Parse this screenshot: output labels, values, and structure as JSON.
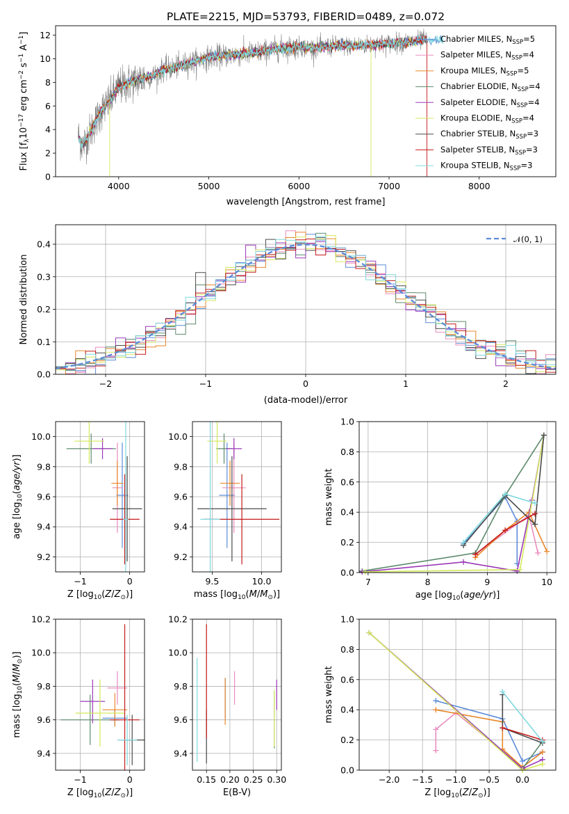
{
  "chart_data": [
    {
      "id": "spectrum",
      "type": "line",
      "title": "PLATE=2215, MJD=53793, FIBERID=0489, z=0.072",
      "xlabel": "wavelength [Angstrom, rest frame]",
      "ylabel": "Flux [f_λ 10^-17 erg cm^-2 s^-1 A^-1]",
      "xlim": [
        3300,
        8850
      ],
      "ylim": [
        0,
        12.8
      ],
      "xticks": [
        4000,
        5000,
        6000,
        7000,
        8000
      ],
      "yticks": [
        0,
        2,
        4,
        6,
        8,
        10,
        12
      ],
      "data_color": "#808080",
      "data_series": {
        "x": [
          3550,
          3600,
          3700,
          3800,
          3900,
          4000,
          4100,
          4200,
          4300,
          4400,
          4500,
          4600,
          4800,
          5000,
          5200,
          5400,
          5600,
          5800,
          6000,
          6200,
          6400,
          6600,
          6800,
          7000,
          7200,
          7400
        ],
        "y": [
          3.5,
          2.6,
          4.0,
          5.5,
          6.4,
          7.6,
          7.9,
          8.2,
          8.4,
          8.6,
          9.1,
          9.2,
          9.7,
          10.1,
          10.3,
          10.4,
          10.6,
          10.9,
          11.0,
          10.9,
          11.1,
          11.1,
          11.2,
          11.3,
          11.4,
          11.6
        ]
      },
      "series": [
        {
          "name": "Chabrier MILES, N_SSP=5",
          "color": "#5b8bd9"
        },
        {
          "name": "Salpeter MILES, N_SSP=4",
          "color": "#e98bbd"
        },
        {
          "name": "Kroupa MILES, N_SSP=5",
          "color": "#e8862a"
        },
        {
          "name": "Chabrier ELODIE, N_SSP=4",
          "color": "#5c8a6c"
        },
        {
          "name": "Salpeter ELODIE, N_SSP=4",
          "color": "#9b38b8"
        },
        {
          "name": "Kroupa ELODIE, N_SSP=4",
          "color": "#d5e85c"
        },
        {
          "name": "Chabrier STELIB, N_SSP=3",
          "color": "#4a4a4a"
        },
        {
          "name": "Salpeter STELIB, N_SSP=3",
          "color": "#c41a1a"
        },
        {
          "name": "Kroupa STELIB, N_SSP=3",
          "color": "#7fd8de"
        }
      ],
      "legend": "upper right"
    },
    {
      "id": "residuals",
      "type": "line",
      "xlabel": "(data-model)/error",
      "ylabel": "Normed distribution",
      "xlim": [
        -2.5,
        2.5
      ],
      "ylim": [
        0,
        0.46
      ],
      "xticks": [
        -2,
        -1,
        0,
        1,
        2
      ],
      "yticks": [
        0.0,
        0.1,
        0.2,
        0.3,
        0.4
      ],
      "bin_width": 0.1,
      "grid": true,
      "series": [
        {
          "name": "N(0,1)",
          "style": "dashed",
          "color": "#5b8bd9"
        }
      ],
      "legend_label": "𝒩(0, 1)",
      "legend": "upper right"
    },
    {
      "id": "age_vs_Z",
      "type": "scatter",
      "xlabel": "Z [log10(Z/Z⊙)]",
      "ylabel": "age  [log10(age/yr)]",
      "xlim": [
        -1.5,
        0.3
      ],
      "ylim": [
        9.1,
        10.1
      ],
      "xticks": [
        -1,
        0
      ],
      "yticks": [
        9.2,
        9.4,
        9.6,
        9.8,
        10.0
      ],
      "points": [
        {
          "s": 0,
          "x": -0.15,
          "y": 9.61,
          "xe": 0.12,
          "ye": 0.35
        },
        {
          "s": 1,
          "x": -0.25,
          "y": 9.66,
          "xe": 0.1,
          "ye": 0.3
        },
        {
          "s": 2,
          "x": -0.25,
          "y": 9.69,
          "xe": 0.12,
          "ye": 0.15
        },
        {
          "s": 3,
          "x": -0.78,
          "y": 9.92,
          "xe": 0.5,
          "ye": 0.1
        },
        {
          "s": 4,
          "x": -0.55,
          "y": 9.92,
          "xe": 0.2,
          "ye": 0.07
        },
        {
          "s": 5,
          "x": -0.82,
          "y": 9.97,
          "xe": 0.3,
          "ye": 0.15
        },
        {
          "s": 6,
          "x": -0.05,
          "y": 9.52,
          "xe": 0.3,
          "ye": 0.35
        },
        {
          "s": 7,
          "x": -0.1,
          "y": 9.45,
          "xe": 0.3,
          "ye": 0.3
        },
        {
          "s": 8,
          "x": -0.08,
          "y": 9.45,
          "xe": 0.05,
          "ye": 0.65
        }
      ]
    },
    {
      "id": "age_vs_mass",
      "type": "scatter",
      "xlabel": "mass [log10(M/M⊙)]",
      "ylabel": "",
      "xlim": [
        9.3,
        10.2
      ],
      "ylim": [
        9.1,
        10.1
      ],
      "xticks": [
        9.5,
        10.0
      ],
      "yticks": [
        9.2,
        9.4,
        9.6,
        9.8,
        10.0
      ],
      "points": [
        {
          "s": 0,
          "x": 9.65,
          "y": 9.61,
          "xe": 0.08,
          "ye": 0.35
        },
        {
          "s": 1,
          "x": 9.72,
          "y": 9.66,
          "xe": 0.12,
          "ye": 0.3
        },
        {
          "s": 2,
          "x": 9.68,
          "y": 9.69,
          "xe": 0.1,
          "ye": 0.15
        },
        {
          "s": 3,
          "x": 9.62,
          "y": 9.92,
          "xe": 0.08,
          "ye": 0.1
        },
        {
          "s": 4,
          "x": 9.72,
          "y": 9.92,
          "xe": 0.08,
          "ye": 0.07
        },
        {
          "s": 5,
          "x": 9.55,
          "y": 9.97,
          "xe": 0.1,
          "ye": 0.15
        },
        {
          "s": 6,
          "x": 9.7,
          "y": 9.52,
          "xe": 0.35,
          "ye": 0.35
        },
        {
          "s": 7,
          "x": 9.8,
          "y": 9.45,
          "xe": 0.38,
          "ye": 0.3
        },
        {
          "s": 8,
          "x": 9.48,
          "y": 9.45,
          "xe": 0.1,
          "ye": 0.65
        }
      ]
    },
    {
      "id": "weight_vs_age",
      "type": "line",
      "xlabel": "age  [log10(age/yr)]",
      "ylabel": "mass weight",
      "xlim": [
        6.85,
        10.15
      ],
      "ylim": [
        0,
        1.0
      ],
      "xticks": [
        7,
        8,
        9,
        10
      ],
      "yticks": [
        0.0,
        0.2,
        0.4,
        0.6,
        0.8,
        1.0
      ],
      "grid": true,
      "series": [
        {
          "s": 0,
          "x": [
            8.6,
            9.3,
            9.5,
            9.5
          ],
          "y": [
            0.19,
            0.5,
            0.34,
            0.06
          ]
        },
        {
          "s": 1,
          "x": [
            8.8,
            9.7,
            9.85
          ],
          "y": [
            0.12,
            0.38,
            0.13
          ]
        },
        {
          "s": 2,
          "x": [
            8.8,
            9.3,
            9.7,
            10.0
          ],
          "y": [
            0.1,
            0.28,
            0.4,
            0.14
          ]
        },
        {
          "s": 3,
          "x": [
            6.9,
            8.8,
            9.3,
            9.95
          ],
          "y": [
            0.01,
            0.13,
            0.51,
            0.91
          ]
        },
        {
          "s": 4,
          "x": [
            6.9,
            8.6,
            9.5,
            9.75,
            9.95
          ],
          "y": [
            0.005,
            0.07,
            0.01,
            0.48,
            0.91
          ]
        },
        {
          "s": 5,
          "x": [
            6.95,
            9.55,
            9.95
          ],
          "y": [
            0.005,
            0.02,
            0.91
          ]
        },
        {
          "s": 6,
          "x": [
            8.6,
            9.3,
            9.8,
            9.95
          ],
          "y": [
            0.18,
            0.51,
            0.32,
            0.91
          ]
        },
        {
          "s": 7,
          "x": [
            8.8,
            9.3,
            9.8
          ],
          "y": [
            0.12,
            0.28,
            0.39
          ]
        },
        {
          "s": 8,
          "x": [
            8.6,
            9.3,
            9.8
          ],
          "y": [
            0.2,
            0.52,
            0.46
          ]
        }
      ]
    },
    {
      "id": "mass_vs_Z",
      "type": "scatter",
      "xlabel": "Z [log10(Z/Z⊙)]",
      "ylabel": "mass [log10(M/M⊙)]",
      "xlim": [
        -1.5,
        0.3
      ],
      "ylim": [
        9.3,
        10.2
      ],
      "xticks": [
        -1,
        0
      ],
      "yticks": [
        9.4,
        9.6,
        9.8,
        10.0,
        10.2
      ],
      "points": [
        {
          "s": 0,
          "x": -0.3,
          "y": 9.61,
          "xe": 0.25,
          "ye": 0.05
        },
        {
          "s": 1,
          "x": -0.25,
          "y": 9.79,
          "xe": 0.2,
          "ye": 0.1
        },
        {
          "s": 2,
          "x": -0.3,
          "y": 9.66,
          "xe": 0.25,
          "ye": 0.1
        },
        {
          "s": 3,
          "x": -0.8,
          "y": 9.6,
          "xe": 0.6,
          "ye": 0.15
        },
        {
          "s": 4,
          "x": -0.75,
          "y": 9.71,
          "xe": 0.25,
          "ye": 0.13
        },
        {
          "s": 5,
          "x": -0.6,
          "y": 9.64,
          "xe": 0.5,
          "ye": 0.2
        },
        {
          "s": 6,
          "x": 0.05,
          "y": 9.48,
          "xe": 0.25,
          "ye": 0.15
        },
        {
          "s": 7,
          "x": -0.1,
          "y": 9.6,
          "xe": 0.3,
          "ye": 0.57
        },
        {
          "s": 8,
          "x": -0.05,
          "y": 9.48,
          "xe": 0.2,
          "ye": 0.15
        }
      ]
    },
    {
      "id": "mass_vs_ebv",
      "type": "scatter",
      "xlabel": "E(B-V)",
      "ylabel": "",
      "xlim": [
        0.12,
        0.31
      ],
      "ylim": [
        9.3,
        10.2
      ],
      "xticks": [
        0.15,
        0.2,
        0.25,
        0.3
      ],
      "yticks": [
        9.4,
        9.6,
        9.8,
        10.0,
        10.2
      ],
      "points": [
        {
          "s": 0,
          "x": 0.19,
          "y": 9.73,
          "xe": 0,
          "ye": 0.12
        },
        {
          "s": 1,
          "x": 0.21,
          "y": 9.79,
          "xe": 0,
          "ye": 0.1
        },
        {
          "s": 2,
          "x": 0.19,
          "y": 9.71,
          "xe": 0,
          "ye": 0.14
        },
        {
          "s": 3,
          "x": 0.295,
          "y": 9.6,
          "xe": 0,
          "ye": 0.17
        },
        {
          "s": 4,
          "x": 0.3,
          "y": 9.75,
          "xe": 0,
          "ye": 0.09
        },
        {
          "s": 5,
          "x": 0.295,
          "y": 9.61,
          "xe": 0,
          "ye": 0.17
        },
        {
          "s": 6,
          "x": 0.15,
          "y": 9.5,
          "xe": 0,
          "ye": 0.16
        },
        {
          "s": 7,
          "x": 0.15,
          "y": 9.83,
          "xe": 0,
          "ye": 0.34
        },
        {
          "s": 8,
          "x": 0.13,
          "y": 9.66,
          "xe": 0,
          "ye": 0.31
        }
      ]
    },
    {
      "id": "weight_vs_Z",
      "type": "line",
      "xlabel": "Z [log10(Z/Z⊙)]",
      "ylabel": "mass weight",
      "xlim": [
        -2.45,
        0.5
      ],
      "ylim": [
        0,
        1.0
      ],
      "xticks": [
        -2.0,
        -1.5,
        -1.0,
        -0.5,
        0.0
      ],
      "yticks": [
        0.0,
        0.2,
        0.4,
        0.6,
        0.8,
        1.0
      ],
      "grid": true,
      "series": [
        {
          "s": 0,
          "x": [
            -1.3,
            -0.3,
            0.0,
            0.3
          ],
          "y": [
            0.46,
            0.34,
            0.06,
            0.12
          ]
        },
        {
          "s": 1,
          "x": [
            -1.3,
            -1.3,
            -1.0,
            0.0,
            0.3
          ],
          "y": [
            0.13,
            0.27,
            0.38,
            0.02,
            0.12
          ]
        },
        {
          "s": 2,
          "x": [
            -1.3,
            -0.3,
            -0.3,
            0.0,
            0.3
          ],
          "y": [
            0.4,
            0.32,
            0.14,
            0.02,
            0.12
          ]
        },
        {
          "s": 3,
          "x": [
            -2.3,
            0.0,
            0.3
          ],
          "y": [
            0.91,
            0.01,
            0.19
          ]
        },
        {
          "s": 4,
          "x": [
            -2.3,
            0.0,
            0.3
          ],
          "y": [
            0.91,
            0.01,
            0.07
          ]
        },
        {
          "s": 5,
          "x": [
            -2.3,
            0.0,
            0.3
          ],
          "y": [
            0.91,
            0.0,
            0.04
          ]
        },
        {
          "s": 6,
          "x": [
            -0.3,
            -0.3,
            0.3
          ],
          "y": [
            0.5,
            0.28,
            0.18
          ]
        },
        {
          "s": 7,
          "x": [
            -0.3,
            0.3
          ],
          "y": [
            0.28,
            0.2
          ]
        },
        {
          "s": 8,
          "x": [
            -0.3,
            0.3
          ],
          "y": [
            0.52,
            0.19
          ]
        }
      ]
    }
  ]
}
